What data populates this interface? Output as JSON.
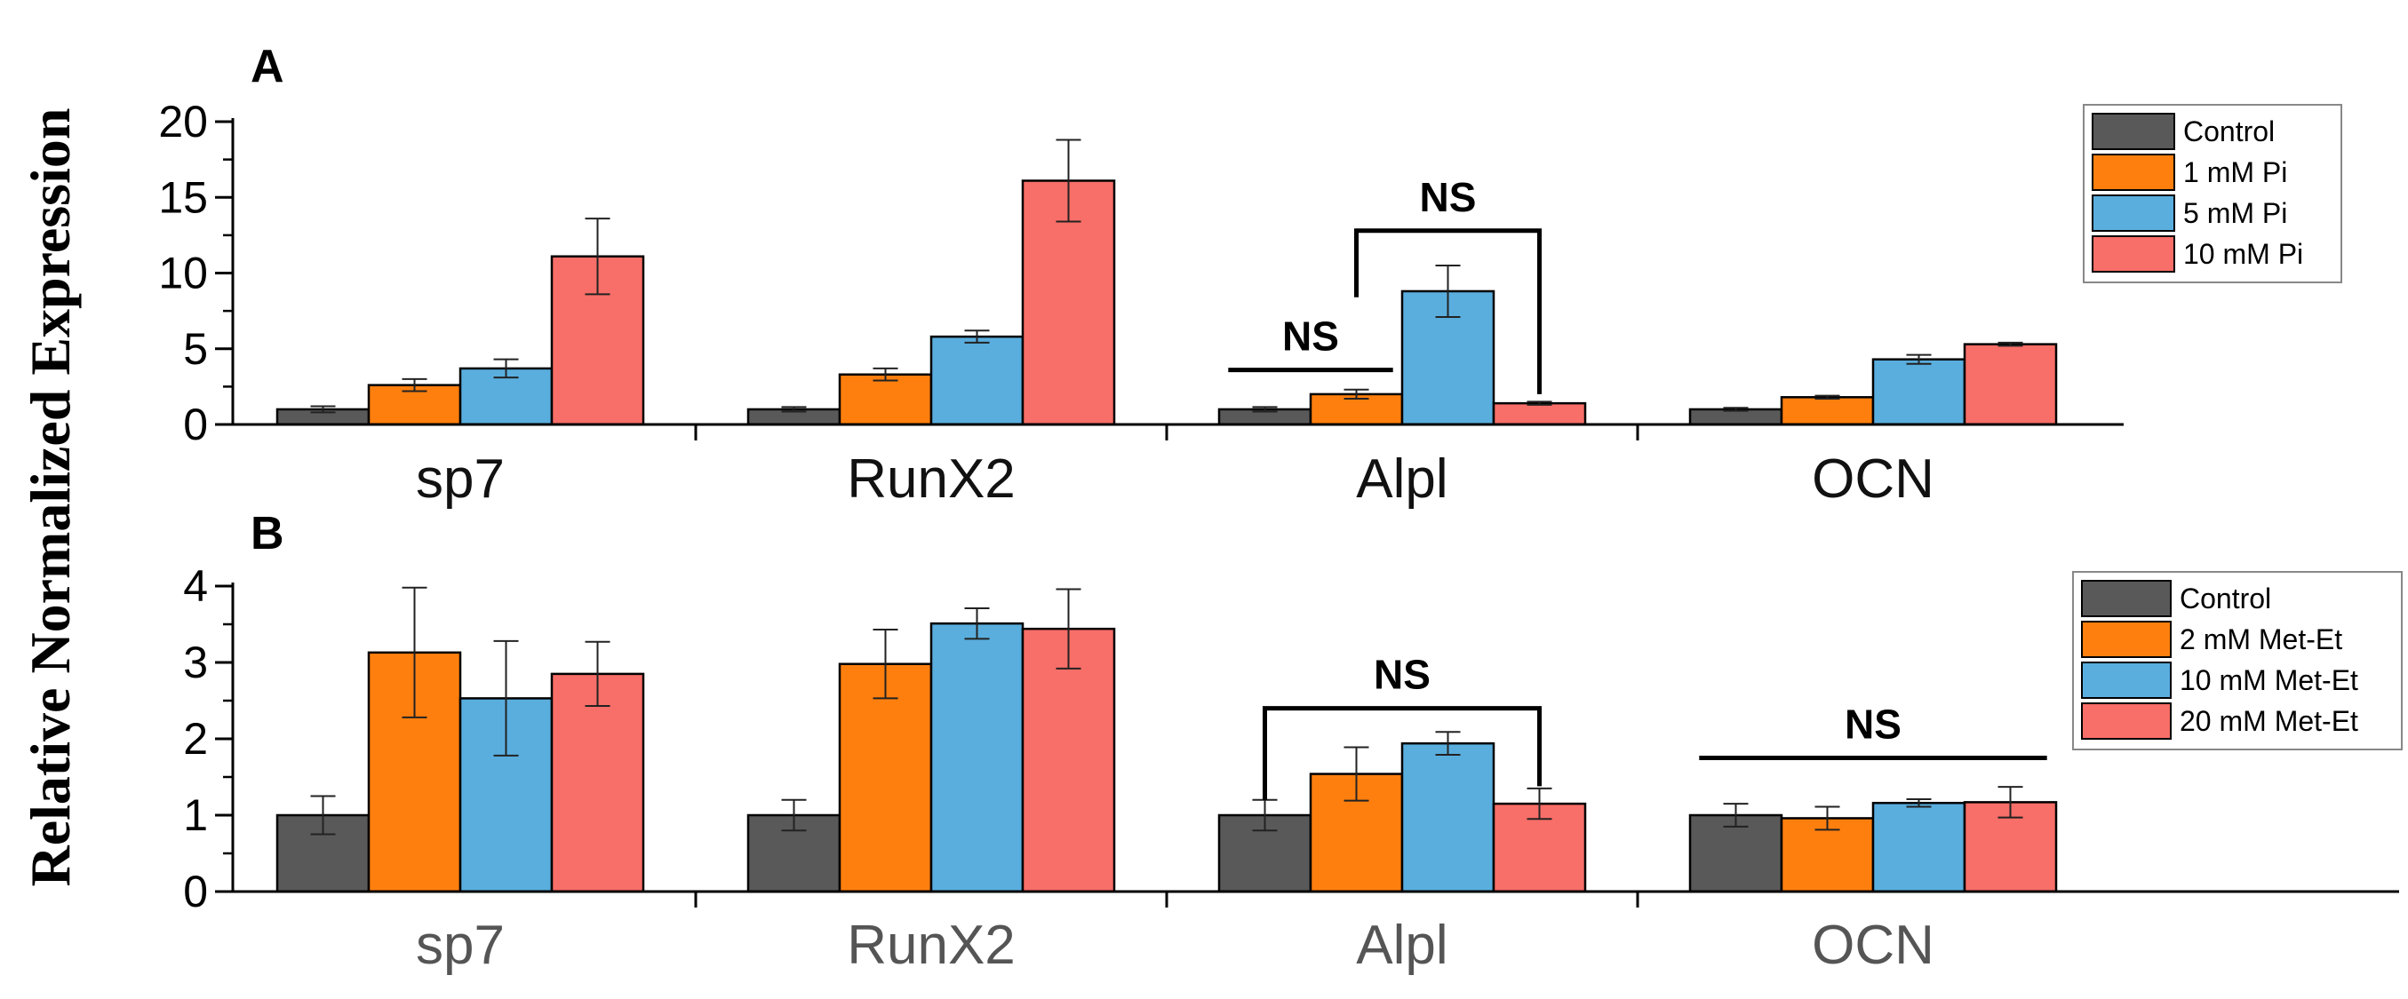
{
  "figure": {
    "shared_ylabel": "Relative Normalized Expression"
  },
  "colors": {
    "control": "#595959",
    "s1": "#ff7f0e",
    "s2": "#5aaede",
    "s3": "#f86e68",
    "axis": "#000000"
  },
  "chart_data": [
    {
      "panel": "A",
      "type": "bar",
      "categories": [
        "sp7",
        "RunX2",
        "Alpl",
        "OCN"
      ],
      "ylim": [
        0,
        20
      ],
      "yticks": [
        0,
        5,
        10,
        15,
        20
      ],
      "ylabel": "Relative Normalized Expression",
      "category_color": "#111111",
      "legend_position": "top-right",
      "series": [
        {
          "name": "Control",
          "values": [
            1.0,
            1.0,
            1.0,
            1.0
          ],
          "errors": [
            0.2,
            0.15,
            0.15,
            0.1
          ]
        },
        {
          "name": "1 mM Pi",
          "values": [
            2.6,
            3.3,
            2.0,
            1.8
          ],
          "errors": [
            0.4,
            0.4,
            0.3,
            0.1
          ]
        },
        {
          "name": "5 mM Pi",
          "values": [
            3.7,
            5.8,
            8.8,
            4.3
          ],
          "errors": [
            0.6,
            0.4,
            1.7,
            0.3
          ]
        },
        {
          "name": "10 mM Pi",
          "values": [
            11.1,
            16.1,
            1.4,
            5.3
          ],
          "errors": [
            2.5,
            2.7,
            0.1,
            0.1
          ]
        }
      ],
      "annotations": [
        {
          "text": "NS",
          "type": "line",
          "category": 2,
          "from_series": 0,
          "to_series": 1,
          "y": 3.6
        },
        {
          "text": "NS",
          "type": "bracket",
          "category": 2,
          "from_series": 1,
          "to_series": 3,
          "y": 12.8,
          "left_end": 8.4,
          "right_end": 2.0
        }
      ]
    },
    {
      "panel": "B",
      "type": "bar",
      "categories": [
        "sp7",
        "RunX2",
        "Alpl",
        "OCN"
      ],
      "ylim": [
        0,
        4
      ],
      "yticks": [
        0,
        1,
        2,
        3,
        4
      ],
      "ylabel": "Relative Normalized Expression",
      "category_color": "#555555",
      "legend_position": "top-right",
      "series": [
        {
          "name": "Control",
          "values": [
            1.0,
            1.0,
            1.0,
            1.0
          ],
          "errors": [
            0.25,
            0.2,
            0.2,
            0.15
          ]
        },
        {
          "name": "2 mM Met-Et",
          "values": [
            3.13,
            2.98,
            1.54,
            0.96
          ],
          "errors": [
            0.85,
            0.45,
            0.35,
            0.15
          ]
        },
        {
          "name": "10 mM Met-Et",
          "values": [
            2.53,
            3.51,
            1.94,
            1.16
          ],
          "errors": [
            0.75,
            0.2,
            0.15,
            0.05
          ]
        },
        {
          "name": "20 mM Met-Et",
          "values": [
            2.85,
            3.44,
            1.15,
            1.17
          ],
          "errors": [
            0.42,
            0.52,
            0.2,
            0.2
          ]
        }
      ],
      "annotations": [
        {
          "text": "NS",
          "type": "bracket",
          "category": 2,
          "from_series": 0,
          "to_series": 3,
          "y": 2.4,
          "left_end": 1.2,
          "right_end": 1.38
        },
        {
          "text": "NS",
          "type": "line",
          "category": 3,
          "from_series": 0,
          "to_series": 3,
          "y": 1.75
        }
      ]
    }
  ]
}
